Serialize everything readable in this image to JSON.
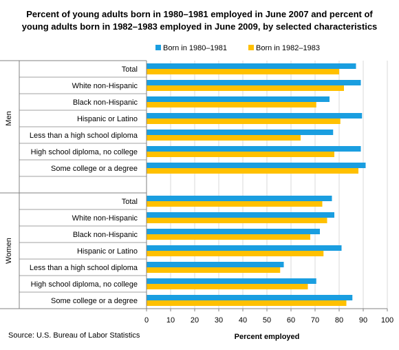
{
  "chart_data": {
    "type": "bar",
    "orientation": "horizontal",
    "title_line1": "Percent of young adults born in 1980–1981  employed in June 2007  and percent of",
    "title_line2": "young adults born in 1982–1983  employed  in June 2009,  by selected characteristics",
    "xlabel": "Percent employed",
    "xlim": [
      0,
      100
    ],
    "xticks": [
      "0",
      "10",
      "20",
      "30",
      "40",
      "50",
      "60",
      "70",
      "80",
      "90",
      "100"
    ],
    "legend_position": "top",
    "series": [
      {
        "name": "Born in 1980–1981",
        "color": "#1a9ee0"
      },
      {
        "name": "Born in 1982–1983",
        "color": "#ffc000"
      }
    ],
    "groups": [
      {
        "name": "Men",
        "categories": [
          "Total",
          "White non-Hispanic",
          "Black non-Hispanic",
          "Hispanic or Latino",
          "Less than a high school diploma",
          "High school diploma, no college",
          "Some college or a degree"
        ],
        "born_1980_1981": [
          87,
          89,
          76,
          89.5,
          77.5,
          89,
          91
        ],
        "born_1982_1983": [
          80,
          82,
          70.5,
          80.5,
          64,
          78,
          88
        ]
      },
      {
        "name": "Women",
        "categories": [
          "Total",
          "White non-Hispanic",
          "Black non-Hispanic",
          "Hispanic or Latino",
          "Less than a high school diploma",
          "High school diploma, no college",
          "Some college or a degree"
        ],
        "born_1980_1981": [
          77,
          78,
          72,
          81,
          57,
          70.5,
          85.5
        ],
        "born_1982_1983": [
          73,
          75,
          68,
          73.5,
          55.5,
          67,
          83
        ]
      }
    ]
  },
  "source": "Source: U.S. Bureau of Labor Statistics"
}
